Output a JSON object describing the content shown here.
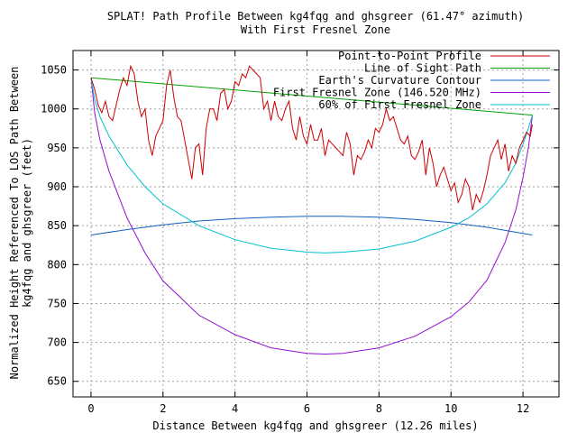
{
  "chart_data": {
    "type": "line",
    "title": "SPLAT! Path Profile Between kg4fqg and ghsgreer (61.47° azimuth)",
    "subtitle": "With First Fresnel Zone",
    "xlabel": "Distance Between kg4fqg and ghsgreer (12.26 miles)",
    "ylabel_line1": "Normalized Height Referenced To LOS Path Between",
    "ylabel_line2": "kg4fqg and ghsgreer (feet)",
    "xlim": [
      -0.5,
      13
    ],
    "ylim": [
      630,
      1075
    ],
    "xticks": [
      0,
      2,
      4,
      6,
      8,
      10,
      12
    ],
    "yticks": [
      650,
      700,
      750,
      800,
      850,
      900,
      950,
      1000,
      1050
    ],
    "grid": true,
    "legend_position": "top-right",
    "series": [
      {
        "name": "Point-to-Point Profile",
        "color": "#cc0000",
        "x": [
          0,
          0.1,
          0.2,
          0.3,
          0.4,
          0.5,
          0.6,
          0.7,
          0.8,
          0.9,
          1.0,
          1.1,
          1.2,
          1.3,
          1.4,
          1.5,
          1.6,
          1.7,
          1.8,
          1.9,
          2.0,
          2.1,
          2.2,
          2.3,
          2.4,
          2.5,
          2.6,
          2.7,
          2.8,
          2.9,
          3.0,
          3.1,
          3.2,
          3.3,
          3.4,
          3.5,
          3.6,
          3.7,
          3.8,
          3.9,
          4.0,
          4.1,
          4.2,
          4.3,
          4.4,
          4.5,
          4.6,
          4.7,
          4.8,
          4.9,
          5.0,
          5.1,
          5.2,
          5.3,
          5.4,
          5.5,
          5.6,
          5.7,
          5.8,
          5.9,
          6.0,
          6.1,
          6.2,
          6.3,
          6.4,
          6.5,
          6.6,
          6.7,
          6.8,
          6.9,
          7.0,
          7.1,
          7.2,
          7.3,
          7.4,
          7.5,
          7.6,
          7.7,
          7.8,
          7.9,
          8.0,
          8.1,
          8.2,
          8.3,
          8.4,
          8.5,
          8.6,
          8.7,
          8.8,
          8.9,
          9.0,
          9.1,
          9.2,
          9.3,
          9.4,
          9.5,
          9.6,
          9.7,
          9.8,
          9.9,
          10.0,
          10.1,
          10.2,
          10.3,
          10.4,
          10.5,
          10.6,
          10.7,
          10.8,
          10.9,
          11.0,
          11.1,
          11.2,
          11.3,
          11.4,
          11.5,
          11.6,
          11.7,
          11.8,
          11.9,
          12.0,
          12.1,
          12.2,
          12.26
        ],
        "y": [
          1040,
          1025,
          1005,
          995,
          1010,
          990,
          985,
          1005,
          1025,
          1040,
          1030,
          1055,
          1045,
          1010,
          990,
          1000,
          960,
          940,
          965,
          975,
          985,
          1030,
          1050,
          1015,
          990,
          985,
          960,
          935,
          910,
          950,
          955,
          915,
          975,
          1000,
          1000,
          985,
          1020,
          1025,
          1000,
          1010,
          1035,
          1030,
          1045,
          1040,
          1055,
          1050,
          1045,
          1040,
          1000,
          1010,
          985,
          1010,
          990,
          985,
          1000,
          1010,
          975,
          960,
          990,
          965,
          955,
          980,
          960,
          960,
          975,
          940,
          960,
          955,
          950,
          945,
          940,
          970,
          955,
          915,
          940,
          935,
          945,
          960,
          950,
          975,
          970,
          980,
          1000,
          985,
          990,
          975,
          960,
          955,
          965,
          940,
          935,
          945,
          960,
          915,
          950,
          930,
          900,
          915,
          925,
          910,
          895,
          905,
          880,
          890,
          910,
          900,
          870,
          890,
          880,
          895,
          915,
          940,
          950,
          960,
          935,
          955,
          920,
          940,
          930,
          950,
          960,
          970,
          965,
          980
        ]
      },
      {
        "name": "Line of Sight Path",
        "color": "#00a000",
        "x": [
          0,
          12.26
        ],
        "y": [
          1040,
          992
        ]
      },
      {
        "name": "Earth's Curvature Contour",
        "color": "#1060c0",
        "x": [
          0,
          1,
          2,
          3,
          4,
          5,
          6,
          6.5,
          7,
          8,
          9,
          10,
          11,
          12,
          12.26
        ],
        "y": [
          838,
          845,
          851,
          856,
          859,
          861,
          862,
          862,
          862,
          861,
          858,
          854,
          848,
          840,
          838
        ]
      },
      {
        "name": "First Fresnel Zone (146.520 MHz)",
        "color": "#9010d0",
        "x": [
          0,
          0.1,
          0.25,
          0.5,
          1,
          1.5,
          2,
          3,
          4,
          5,
          6,
          6.5,
          7,
          8,
          9,
          10,
          10.5,
          11,
          11.5,
          11.8,
          12,
          12.15,
          12.26
        ],
        "y": [
          1040,
          995,
          960,
          920,
          860,
          815,
          779,
          735,
          710,
          693,
          686,
          685,
          686,
          693,
          708,
          733,
          752,
          780,
          828,
          870,
          912,
          950,
          992
        ]
      },
      {
        "name": "60% of First Fresnel Zone",
        "color": "#00c0d0",
        "x": [
          0,
          0.1,
          0.25,
          0.5,
          1,
          1.5,
          2,
          3,
          4,
          5,
          6,
          6.5,
          7,
          8,
          9,
          10,
          10.5,
          11,
          11.5,
          11.8,
          12,
          12.15,
          12.26
        ],
        "y": [
          1040,
          1012,
          990,
          965,
          928,
          900,
          878,
          850,
          832,
          821,
          816,
          815,
          816,
          820,
          830,
          848,
          860,
          878,
          905,
          930,
          955,
          975,
          992
        ]
      }
    ]
  }
}
